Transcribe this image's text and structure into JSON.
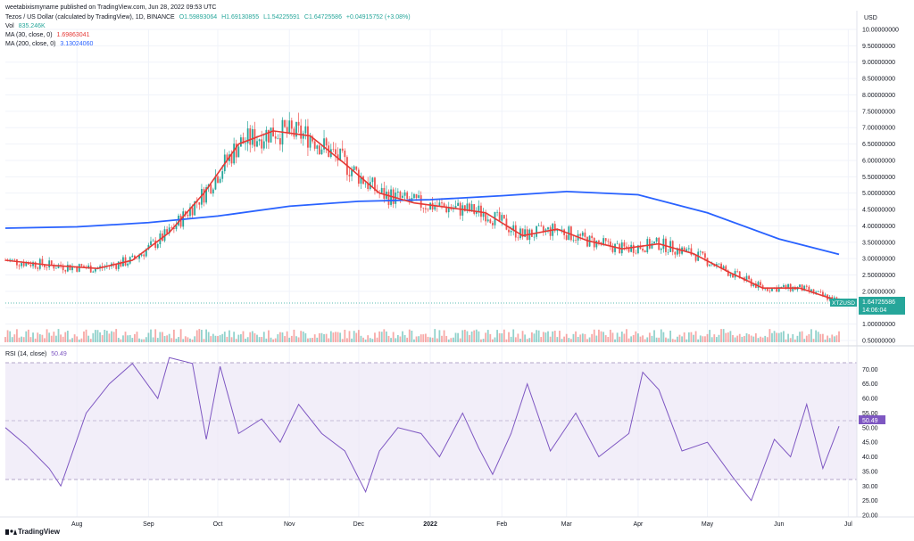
{
  "header": {
    "published_by": "weetabixismyname published on TradingView.com, Jun 28, 2022 09:53 UTC",
    "symbol_line": "Tezos / US Dollar (calculated by TradingView), 1D, BINANCE",
    "ohlc": {
      "o": "O1.59893064",
      "h": "H1.69130855",
      "l": "L1.54225591",
      "c": "C1.64725586",
      "change": "+0.04915752 (+3.08%)"
    },
    "vol": {
      "label": "Vol",
      "value": "835.246K"
    },
    "ma30": {
      "label": "MA (30, close, 0)",
      "value": "1.69863041"
    },
    "ma200": {
      "label": "MA (200, close, 0)",
      "value": "3.13024060"
    },
    "rsi": {
      "label": "RSI (14, close)",
      "value": "50.49"
    }
  },
  "branding": {
    "logo_text": "TradingView"
  },
  "colors": {
    "up": "#26a69a",
    "down": "#ef5350",
    "ma30": "#e53935",
    "ma200": "#2962ff",
    "rsi": "#7e57c2",
    "rsi_band": "#ede7f6"
  },
  "chart_data": [
    {
      "type": "candlestick",
      "title": "Tezos / US Dollar (calculated by TradingView), 1D, BINANCE",
      "price_axis_label": "USD",
      "y_ticks": [
        "10.00000000",
        "9.50000000",
        "9.00000000",
        "8.50000000",
        "8.00000000",
        "7.50000000",
        "7.00000000",
        "6.50000000",
        "6.00000000",
        "5.50000000",
        "5.00000000",
        "4.50000000",
        "4.00000000",
        "3.50000000",
        "3.00000000",
        "2.50000000",
        "2.00000000",
        "1.50000000",
        "1.00000000",
        "0.50000000"
      ],
      "ylim": [
        0.5,
        10.0
      ],
      "x_ticks": [
        "Aug",
        "Sep",
        "Oct",
        "Nov",
        "Dec",
        "2022",
        "Feb",
        "Mar",
        "Apr",
        "May",
        "Jun",
        "Jul"
      ],
      "last_price": {
        "symbol": "XTZUSD",
        "value": "1.64725586",
        "countdown": "14:06:04"
      },
      "series": [
        {
          "name": "MA (30, close, 0)",
          "type": "line",
          "x": [
            "2021-07-01",
            "2021-07-20",
            "2021-08-10",
            "2021-08-25",
            "2021-09-10",
            "2021-09-25",
            "2021-10-10",
            "2021-10-25",
            "2021-11-10",
            "2021-11-25",
            "2021-12-10",
            "2021-12-25",
            "2022-01-10",
            "2022-01-25",
            "2022-02-10",
            "2022-02-25",
            "2022-03-10",
            "2022-03-25",
            "2022-04-10",
            "2022-04-25",
            "2022-05-10",
            "2022-05-25",
            "2022-06-10",
            "2022-06-27"
          ],
          "values": [
            2.95,
            2.8,
            2.7,
            2.95,
            3.8,
            5.0,
            6.5,
            6.9,
            6.75,
            5.9,
            5.0,
            4.7,
            4.55,
            4.4,
            3.7,
            3.9,
            3.55,
            3.3,
            3.45,
            3.15,
            2.6,
            2.1,
            2.1,
            1.7
          ]
        },
        {
          "name": "MA (200, close, 0)",
          "type": "line",
          "x": [
            "2021-07-01",
            "2021-08-01",
            "2021-09-01",
            "2021-10-01",
            "2021-11-01",
            "2021-12-01",
            "2022-01-01",
            "2022-02-01",
            "2022-03-01",
            "2022-04-01",
            "2022-05-01",
            "2022-06-01",
            "2022-06-27"
          ],
          "values": [
            3.93,
            3.97,
            4.1,
            4.3,
            4.6,
            4.75,
            4.8,
            4.92,
            5.05,
            4.95,
            4.4,
            3.6,
            3.13
          ]
        }
      ]
    },
    {
      "type": "line",
      "title": "RSI (14, close)",
      "ylim": [
        20,
        75
      ],
      "y_ticks": [
        "70.00",
        "65.00",
        "60.00",
        "55.00",
        "50.00",
        "45.00",
        "40.00",
        "35.00",
        "30.00",
        "25.00",
        "20.00"
      ],
      "band": [
        30,
        70
      ],
      "midline": 50,
      "series": [
        {
          "name": "RSI (14, close)",
          "x": [
            "2021-07-01",
            "2021-07-10",
            "2021-07-20",
            "2021-07-25",
            "2021-08-05",
            "2021-08-15",
            "2021-08-25",
            "2021-09-05",
            "2021-09-10",
            "2021-09-20",
            "2021-09-26",
            "2021-10-02",
            "2021-10-10",
            "2021-10-20",
            "2021-10-28",
            "2021-11-05",
            "2021-11-15",
            "2021-11-25",
            "2021-12-04",
            "2021-12-10",
            "2021-12-18",
            "2021-12-28",
            "2022-01-05",
            "2022-01-15",
            "2022-01-22",
            "2022-01-28",
            "2022-02-05",
            "2022-02-12",
            "2022-02-22",
            "2022-03-05",
            "2022-03-15",
            "2022-03-28",
            "2022-04-03",
            "2022-04-10",
            "2022-04-20",
            "2022-05-01",
            "2022-05-12",
            "2022-05-20",
            "2022-05-30",
            "2022-06-06",
            "2022-06-13",
            "2022-06-20",
            "2022-06-27"
          ],
          "values": [
            50,
            44,
            36,
            30,
            55,
            65,
            72,
            60,
            74,
            72,
            46,
            71,
            48,
            53,
            45,
            58,
            48,
            42,
            28,
            42,
            50,
            48,
            40,
            55,
            43,
            34,
            48,
            65,
            42,
            55,
            40,
            48,
            69,
            63,
            42,
            45,
            33,
            25,
            46,
            40,
            58,
            36,
            50.5
          ]
        }
      ]
    },
    {
      "type": "bar",
      "title": "Vol",
      "value": "835.246K"
    }
  ]
}
